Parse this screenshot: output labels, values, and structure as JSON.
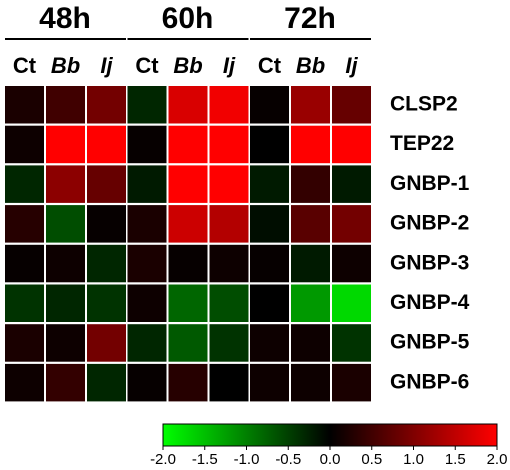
{
  "chart_data": {
    "type": "heatmap",
    "groups": [
      "48h",
      "60h",
      "72h"
    ],
    "columns": [
      "Ct",
      "Bb",
      "Ij",
      "Ct",
      "Bb",
      "Ij",
      "Ct",
      "Bb",
      "Ij"
    ],
    "column_italic": [
      false,
      true,
      true,
      false,
      true,
      true,
      false,
      true,
      true
    ],
    "rows": [
      "CLSP2",
      "TEP22",
      "GNBP-1",
      "GNBP-2",
      "GNBP-3",
      "GNBP-4",
      "GNBP-5",
      "GNBP-6"
    ],
    "values": [
      [
        0.2,
        0.5,
        0.9,
        -0.3,
        1.7,
        1.9,
        0.05,
        1.2,
        0.8
      ],
      [
        0.1,
        2.0,
        2.0,
        0.05,
        2.0,
        2.0,
        0.0,
        2.0,
        2.0
      ],
      [
        -0.3,
        1.1,
        0.8,
        -0.2,
        2.0,
        2.0,
        -0.2,
        0.4,
        -0.2
      ],
      [
        0.3,
        -0.6,
        0.05,
        0.2,
        1.6,
        1.4,
        -0.1,
        0.7,
        0.9
      ],
      [
        0.05,
        0.1,
        -0.3,
        0.2,
        0.05,
        0.1,
        0.05,
        -0.2,
        0.1
      ],
      [
        -0.4,
        -0.3,
        -0.4,
        0.1,
        -0.8,
        -0.6,
        0.0,
        -1.2,
        -1.7
      ],
      [
        0.2,
        0.1,
        0.9,
        -0.3,
        -0.7,
        -0.4,
        0.1,
        0.1,
        -0.4
      ],
      [
        0.1,
        0.4,
        -0.3,
        0.05,
        0.3,
        0.0,
        0.1,
        0.1,
        0.2
      ]
    ],
    "colorbar": {
      "lim": [
        -2,
        2
      ],
      "ticks": [
        {
          "value": -2,
          "label": "-2.0"
        },
        {
          "value": -1.5,
          "label": "-1.5"
        },
        {
          "value": -1,
          "label": "-1.0"
        },
        {
          "value": -0.5,
          "label": "-0.5"
        },
        {
          "value": 0,
          "label": "0.0"
        },
        {
          "value": 0.5,
          "label": "0.5"
        },
        {
          "value": 1,
          "label": "1.0"
        },
        {
          "value": 1.5,
          "label": "1.5"
        },
        {
          "value": 2,
          "label": "2.0"
        }
      ],
      "low_color": "#00ff00",
      "mid_color": "#000000",
      "high_color": "#ff0000"
    }
  }
}
